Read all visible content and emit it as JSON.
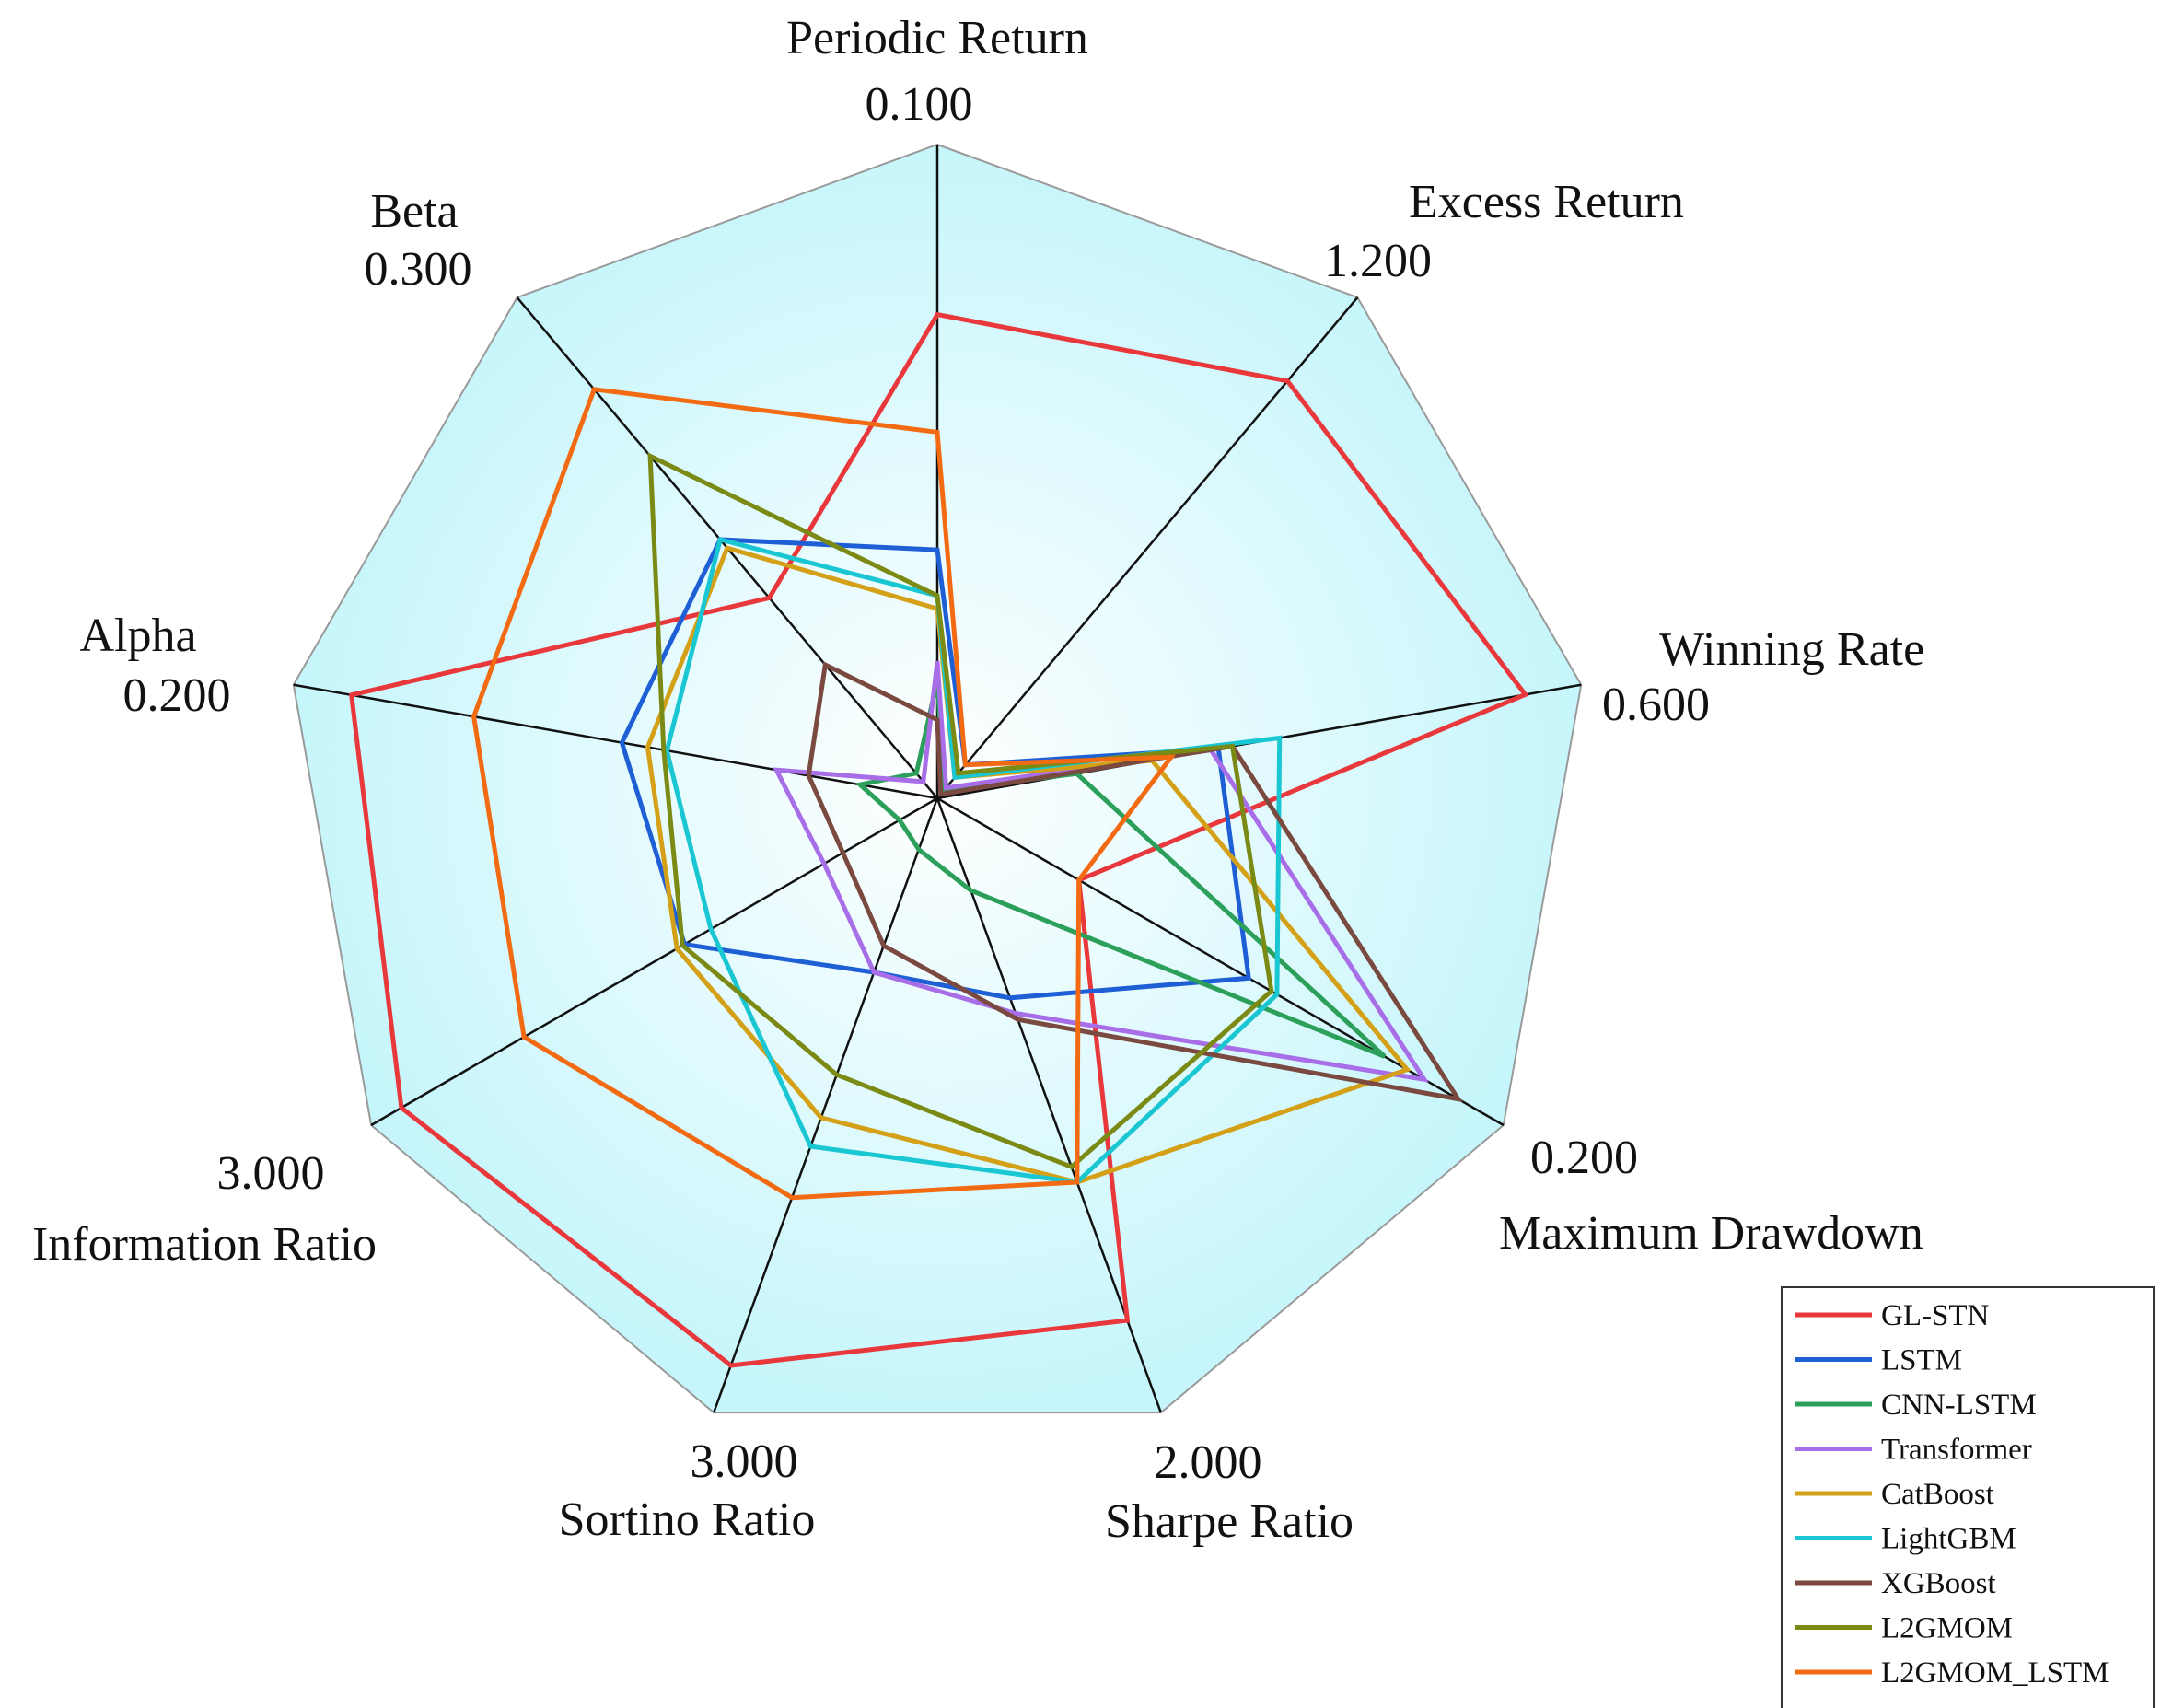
{
  "chart_data": {
    "type": "radar",
    "axes": [
      {
        "name": "Periodic Return",
        "max_label": "0.100",
        "max": 0.1
      },
      {
        "name": "Excess Return",
        "max_label": "1.200",
        "max": 1.2
      },
      {
        "name": "Winning Rate",
        "max_label": "0.600",
        "max": 0.6
      },
      {
        "name": "Maximum Drawdown",
        "max_label": "0.200",
        "max": 0.2
      },
      {
        "name": "Sharpe Ratio",
        "max_label": "2.000",
        "max": 2.0
      },
      {
        "name": "Sortino Ratio",
        "max_label": "3.000",
        "max": 3.0
      },
      {
        "name": "Information Ratio",
        "max_label": "3.000",
        "max": 3.0
      },
      {
        "name": "Alpha",
        "max_label": "0.200",
        "max": 0.2
      },
      {
        "name": "Beta",
        "max_label": "0.300",
        "max": 0.3
      }
    ],
    "series": [
      {
        "name": "GL-STN",
        "color": "#e8383b",
        "values": [
          0.074,
          1.0,
          0.548,
          0.05,
          1.7,
          2.77,
          2.84,
          0.182,
          0.12
        ]
      },
      {
        "name": "LSTM",
        "color": "#1f5fd6",
        "values": [
          0.038,
          0.08,
          0.262,
          0.11,
          0.65,
          0.85,
          1.34,
          0.098,
          0.155
        ]
      },
      {
        "name": "CNN-LSTM",
        "color": "#2ca05a",
        "values": [
          0.018,
          0.02,
          0.13,
          0.158,
          0.3,
          0.25,
          0.2,
          0.024,
          0.015
        ]
      },
      {
        "name": "Transformer",
        "color": "#a86ee8",
        "values": [
          0.021,
          0.025,
          0.255,
          0.172,
          0.7,
          0.85,
          0.6,
          0.05,
          0.01
        ]
      },
      {
        "name": "CatBoost",
        "color": "#d4a017",
        "values": [
          0.029,
          0.05,
          0.2,
          0.166,
          1.25,
          1.56,
          1.38,
          0.09,
          0.15
        ]
      },
      {
        "name": "LightGBM",
        "color": "#19c6d2",
        "values": [
          0.031,
          0.05,
          0.319,
          0.12,
          1.25,
          1.7,
          1.2,
          0.084,
          0.155
        ]
      },
      {
        "name": "XGBoost",
        "color": "#7a4a40",
        "values": [
          0.012,
          0.01,
          0.275,
          0.184,
          0.72,
          0.72,
          0.5,
          0.04,
          0.08
        ]
      },
      {
        "name": "L2GMOM",
        "color": "#7a8a14",
        "values": [
          0.031,
          0.06,
          0.275,
          0.118,
          1.2,
          1.35,
          1.35,
          0.085,
          0.205
        ]
      },
      {
        "name": "L2GMOM_LSTM",
        "color": "#f26a12",
        "values": [
          0.056,
          0.08,
          0.218,
          0.05,
          1.25,
          1.95,
          2.19,
          0.144,
          0.245
        ]
      }
    ],
    "grid": true,
    "legend": "bottom-right",
    "title": ""
  }
}
